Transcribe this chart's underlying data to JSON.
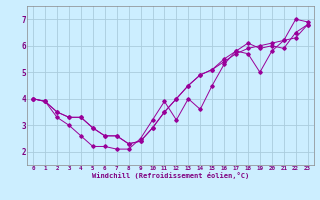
{
  "xlabel": "Windchill (Refroidissement éolien,°C)",
  "ylabel": "",
  "background_color": "#cceeff",
  "grid_color": "#aaccdd",
  "line_color": "#990099",
  "xlim": [
    -0.5,
    23.5
  ],
  "ylim": [
    1.5,
    7.5
  ],
  "yticks": [
    2,
    3,
    4,
    5,
    6,
    7
  ],
  "xticks": [
    0,
    1,
    2,
    3,
    4,
    5,
    6,
    7,
    8,
    9,
    10,
    11,
    12,
    13,
    14,
    15,
    16,
    17,
    18,
    19,
    20,
    21,
    22,
    23
  ],
  "xtick_labels": [
    "0",
    "1",
    "2",
    "3",
    "4",
    "5",
    "6",
    "7",
    "8",
    "9",
    "10",
    "11",
    "12",
    "13",
    "14",
    "15",
    "16",
    "17",
    "18",
    "19",
    "20",
    "21",
    "22",
    "23"
  ],
  "series": [
    [
      4.0,
      3.9,
      3.3,
      3.0,
      2.6,
      2.2,
      2.2,
      2.1,
      2.1,
      2.5,
      3.2,
      3.9,
      3.2,
      4.0,
      3.6,
      4.5,
      5.3,
      5.8,
      5.7,
      5.0,
      5.8,
      6.2,
      7.0,
      6.9
    ],
    [
      4.0,
      3.9,
      3.5,
      3.3,
      3.3,
      2.9,
      2.6,
      2.6,
      2.3,
      2.4,
      2.9,
      3.5,
      4.0,
      4.5,
      4.9,
      5.1,
      5.4,
      5.7,
      5.9,
      6.0,
      6.1,
      6.2,
      6.3,
      6.8
    ],
    [
      4.0,
      3.9,
      3.5,
      3.3,
      3.3,
      2.9,
      2.6,
      2.6,
      2.3,
      2.4,
      2.9,
      3.5,
      4.0,
      4.5,
      4.9,
      5.1,
      5.5,
      5.8,
      6.1,
      5.9,
      6.0,
      5.9,
      6.5,
      6.8
    ]
  ]
}
